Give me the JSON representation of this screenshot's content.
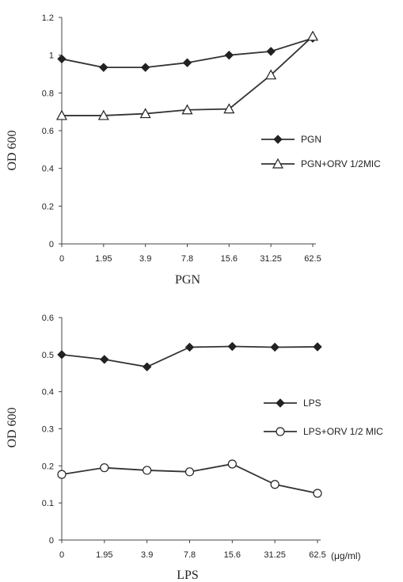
{
  "chart_data": [
    {
      "type": "line",
      "categories": [
        "0",
        "1.95",
        "3.9",
        "7.8",
        "15.6",
        "31.25",
        "62.5"
      ],
      "xlabel": "PGN",
      "ylabel": "OD 600",
      "ylim": [
        0,
        1.2
      ],
      "yticks": [
        "0",
        "0.2",
        "0.4",
        "0.6",
        "0.8",
        "1",
        "1.2"
      ],
      "grid": false,
      "legend_position": "right",
      "series": [
        {
          "name": "PGN",
          "marker": "diamond-filled",
          "values": [
            0.98,
            0.935,
            0.935,
            0.96,
            1.0,
            1.02,
            1.09
          ]
        },
        {
          "name": "PGN+ORV 1/2MIC",
          "marker": "triangle-open",
          "values": [
            0.68,
            0.68,
            0.69,
            0.71,
            0.715,
            0.895,
            1.1
          ]
        }
      ]
    },
    {
      "type": "line",
      "categories": [
        "0",
        "1.95",
        "3.9",
        "7.8",
        "15.6",
        "31.25",
        "62.5"
      ],
      "xlabel": "LPS",
      "ylabel": "OD 600",
      "unit_label": "(μg/ml)",
      "ylim": [
        0,
        0.6
      ],
      "yticks": [
        "0",
        "0.1",
        "0.2",
        "0.3",
        "0.4",
        "0.5",
        "0.6"
      ],
      "grid": false,
      "legend_position": "right",
      "series": [
        {
          "name": "LPS",
          "marker": "diamond-filled",
          "values": [
            0.5,
            0.487,
            0.467,
            0.52,
            0.522,
            0.52,
            0.521
          ]
        },
        {
          "name": "LPS+ORV 1/2 MIC",
          "marker": "circle-open",
          "values": [
            0.177,
            0.195,
            0.188,
            0.184,
            0.205,
            0.15,
            0.126
          ]
        }
      ]
    }
  ]
}
